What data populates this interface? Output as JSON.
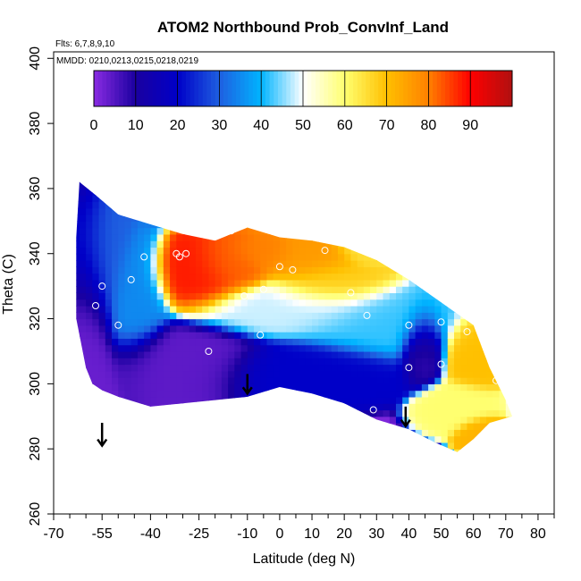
{
  "chart_data": {
    "type": "heatmap",
    "title": "ATOM2 Northbound Prob_ConvInf_Land",
    "annotations": [
      "Flts: 6,7,8,9,10",
      "MMDD: 0210,0213,0215,0218,0219"
    ],
    "xlabel": "Latitude (deg N)",
    "ylabel": "Theta (C)",
    "xlim": [
      -70,
      85
    ],
    "ylim": [
      260,
      402
    ],
    "x_ticks": [
      -70,
      -55,
      -40,
      -25,
      -10,
      0,
      10,
      20,
      30,
      40,
      50,
      60,
      70,
      80
    ],
    "x_minor_ticks": [
      -65,
      -60,
      -50,
      -45,
      -35,
      -30,
      -20,
      -15,
      -5,
      5,
      15,
      25,
      35,
      45,
      55,
      65,
      75,
      85
    ],
    "y_ticks": [
      260,
      280,
      300,
      320,
      340,
      360,
      380,
      400
    ],
    "colorbar": {
      "min": 0,
      "max": 100,
      "ticks": [
        0,
        10,
        20,
        30,
        40,
        50,
        60,
        70,
        80,
        90
      ],
      "stops": [
        "#8a2be2",
        "#1a00a0",
        "#0000c8",
        "#1e5fe0",
        "#00b4ff",
        "#ffffff",
        "#ffff70",
        "#ffc000",
        "#ff8000",
        "#ff0000",
        "#b01010"
      ]
    },
    "region_boundary": [
      [
        -62,
        362
      ],
      [
        -57,
        358
      ],
      [
        -50,
        352
      ],
      [
        -40,
        349
      ],
      [
        -30,
        346
      ],
      [
        -20,
        344
      ],
      [
        -10,
        348
      ],
      [
        0,
        345
      ],
      [
        10,
        344
      ],
      [
        20,
        342
      ],
      [
        30,
        338
      ],
      [
        40,
        332
      ],
      [
        50,
        325
      ],
      [
        60,
        318
      ],
      [
        65,
        305
      ],
      [
        70,
        295
      ],
      [
        72,
        290
      ],
      [
        65,
        288
      ],
      [
        60,
        283
      ],
      [
        55,
        279
      ],
      [
        48,
        282
      ],
      [
        40,
        286
      ],
      [
        30,
        289
      ],
      [
        20,
        294
      ],
      [
        10,
        297
      ],
      [
        0,
        299
      ],
      [
        -10,
        296
      ],
      [
        -20,
        295
      ],
      [
        -30,
        294
      ],
      [
        -40,
        293
      ],
      [
        -50,
        296
      ],
      [
        -55,
        298
      ],
      [
        -58,
        300
      ],
      [
        -60,
        305
      ],
      [
        -63,
        320
      ],
      [
        -63,
        345
      ]
    ],
    "contour_fields": [
      {
        "lat": -25,
        "theta": 333,
        "value": 88,
        "spread_lat": 8,
        "spread_theta": 6
      },
      {
        "lat": -15,
        "theta": 336,
        "value": 82,
        "spread_lat": 7,
        "spread_theta": 5
      },
      {
        "lat": -5,
        "theta": 340,
        "value": 80,
        "spread_lat": 6,
        "spread_theta": 3
      },
      {
        "lat": 8,
        "theta": 338,
        "value": 76,
        "spread_lat": 9,
        "spread_theta": 4
      },
      {
        "lat": 15,
        "theta": 331,
        "value": 68,
        "spread_lat": 10,
        "spread_theta": 5
      },
      {
        "lat": 28,
        "theta": 341,
        "value": 65,
        "spread_lat": 6,
        "spread_theta": 3
      },
      {
        "lat": 60,
        "theta": 310,
        "value": 70,
        "spread_lat": 5,
        "spread_theta": 6
      },
      {
        "lat": 55,
        "theta": 293,
        "value": 60,
        "spread_lat": 6,
        "spread_theta": 4
      },
      {
        "lat": 62,
        "theta": 285,
        "value": 72,
        "spread_lat": 4,
        "spread_theta": 3
      },
      {
        "lat": 5,
        "theta": 323,
        "value": 48,
        "spread_lat": 18,
        "spread_theta": 5
      },
      {
        "lat": 30,
        "theta": 318,
        "value": 42,
        "spread_lat": 15,
        "spread_theta": 6
      },
      {
        "lat": -45,
        "theta": 325,
        "value": 35,
        "spread_lat": 6,
        "spread_theta": 10
      },
      {
        "lat": -55,
        "theta": 335,
        "value": 30,
        "spread_lat": 5,
        "spread_theta": 12
      },
      {
        "lat": 10,
        "theta": 305,
        "value": 20,
        "spread_lat": 16,
        "spread_theta": 5
      },
      {
        "lat": -30,
        "theta": 308,
        "value": 4,
        "spread_lat": 14,
        "spread_theta": 6
      },
      {
        "lat": -58,
        "theta": 315,
        "value": 3,
        "spread_lat": 4,
        "spread_theta": 20
      },
      {
        "lat": 44,
        "theta": 312,
        "value": 8,
        "spread_lat": 4,
        "spread_theta": 6
      }
    ],
    "sample_points": [
      [
        -55,
        330
      ],
      [
        -57,
        324
      ],
      [
        -50,
        318
      ],
      [
        -46,
        332
      ],
      [
        -42,
        339
      ],
      [
        -32,
        340
      ],
      [
        -31,
        339
      ],
      [
        -29,
        340
      ],
      [
        -22,
        310
      ],
      [
        -15,
        347
      ],
      [
        -11,
        327
      ],
      [
        -6,
        315
      ],
      [
        -5,
        329
      ],
      [
        0,
        336
      ],
      [
        4,
        335
      ],
      [
        14,
        341
      ],
      [
        22,
        328
      ],
      [
        27,
        321
      ],
      [
        29,
        292
      ],
      [
        33,
        338
      ],
      [
        40,
        318
      ],
      [
        40,
        305
      ],
      [
        50,
        319
      ],
      [
        50,
        306
      ],
      [
        58,
        316
      ],
      [
        67,
        301
      ]
    ],
    "arrows": [
      {
        "lat": -55,
        "theta_top": 288,
        "theta_bottom": 281
      },
      {
        "lat": -10,
        "theta_top": 303,
        "theta_bottom": 297
      },
      {
        "lat": 39,
        "theta_top": 293,
        "theta_bottom": 287
      }
    ]
  }
}
